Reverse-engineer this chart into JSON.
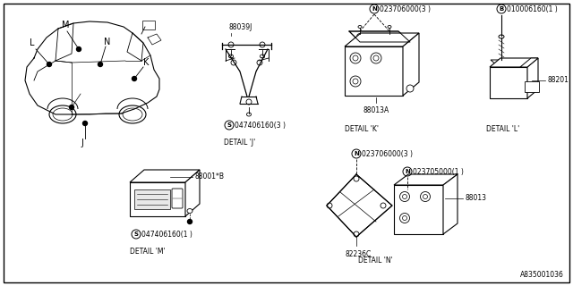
{
  "bg_color": "#ffffff",
  "fig_width": 6.4,
  "fig_height": 3.2,
  "dpi": 100,
  "bottom_right_label": "A835001036",
  "fs_label": 5.5,
  "fs_part": 5.5,
  "fs_detail": 5.5,
  "fs_letter": 7.0,
  "detail_j_part": "88039J",
  "detail_j_fastener": "047406160(3 )",
  "detail_j_label": "DETAIL 'J'",
  "detail_k_part": "88013A",
  "detail_k_fastener": "023706000(3 )",
  "detail_k_label": "DETAIL 'K'",
  "detail_l_part": "88201",
  "detail_l_fastener": "010006160(1 )",
  "detail_l_label": "DETAIL 'L'",
  "detail_m_part": "88001*B",
  "detail_m_fastener": "047406160(1 )",
  "detail_m_label": "DETAIL 'M'",
  "detail_n_part1": "82236C",
  "detail_n_part2": "88013",
  "detail_n_fastener1": "023706000(3 )",
  "detail_n_fastener2": "023705000(1 )",
  "detail_n_label": "DETAIL 'N'"
}
